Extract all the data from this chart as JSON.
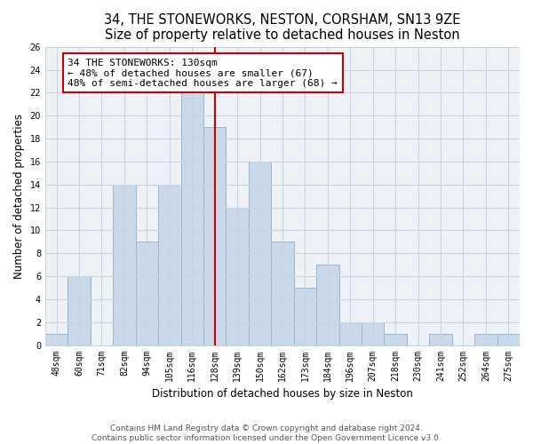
{
  "title": "34, THE STONEWORKS, NESTON, CORSHAM, SN13 9ZE",
  "subtitle": "Size of property relative to detached houses in Neston",
  "xlabel": "Distribution of detached houses by size in Neston",
  "ylabel": "Number of detached properties",
  "bar_labels": [
    "48sqm",
    "60sqm",
    "71sqm",
    "82sqm",
    "94sqm",
    "105sqm",
    "116sqm",
    "128sqm",
    "139sqm",
    "150sqm",
    "162sqm",
    "173sqm",
    "184sqm",
    "196sqm",
    "207sqm",
    "218sqm",
    "230sqm",
    "241sqm",
    "252sqm",
    "264sqm",
    "275sqm"
  ],
  "bar_heights": [
    1,
    6,
    0,
    14,
    9,
    14,
    22,
    19,
    12,
    16,
    9,
    5,
    7,
    2,
    2,
    1,
    0,
    1,
    0,
    1,
    1
  ],
  "bar_color": "#c9d9ea",
  "bar_edge_color": "#9ab5cc",
  "highlight_bar_index": 7,
  "highlight_line_color": "#cc0000",
  "annotation_line1": "34 THE STONEWORKS: 130sqm",
  "annotation_line2": "← 48% of detached houses are smaller (67)",
  "annotation_line3": "48% of semi-detached houses are larger (68) →",
  "annotation_box_color": "#ffffff",
  "annotation_box_edge": "#cc0000",
  "ylim": [
    0,
    26
  ],
  "yticks": [
    0,
    2,
    4,
    6,
    8,
    10,
    12,
    14,
    16,
    18,
    20,
    22,
    24,
    26
  ],
  "footer1": "Contains HM Land Registry data © Crown copyright and database right 2024.",
  "footer2": "Contains public sector information licensed under the Open Government Licence v3.0.",
  "bg_color": "#ffffff",
  "plot_bg_color": "#eef2f7",
  "grid_color": "#c8d4e0",
  "title_fontsize": 10.5,
  "axis_label_fontsize": 8.5,
  "tick_fontsize": 7,
  "annotation_fontsize": 8,
  "footer_fontsize": 6.5
}
